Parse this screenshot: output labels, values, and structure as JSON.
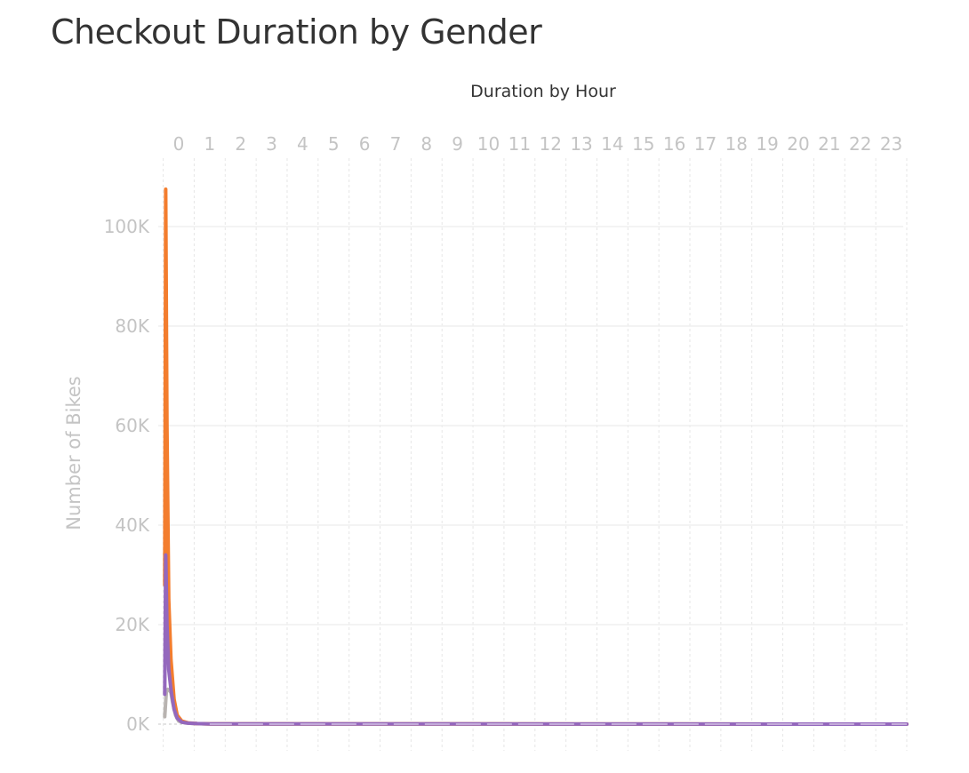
{
  "chart_data": {
    "type": "line",
    "title": "Checkout Duration by Gender",
    "xlabel": "Duration by Hour",
    "ylabel": "Number of Bikes",
    "x_ticks": [
      "0",
      "1",
      "2",
      "3",
      "4",
      "5",
      "6",
      "7",
      "8",
      "9",
      "10",
      "11",
      "12",
      "13",
      "14",
      "15",
      "16",
      "17",
      "18",
      "19",
      "20",
      "21",
      "22",
      "23"
    ],
    "y_ticks": [
      "0K",
      "20K",
      "40K",
      "60K",
      "80K",
      "100K"
    ],
    "xlim": [
      -0.5,
      23.5
    ],
    "ylim": [
      0,
      110000
    ],
    "grid": true,
    "colors": {
      "orange": "#f37d2e",
      "purple": "#9468bd",
      "gray": "#b8b3b0"
    },
    "series": [
      {
        "color": "#b8b3b0",
        "points": [
          [
            -0.45,
            1500
          ],
          [
            -0.4,
            6500
          ],
          [
            -0.35,
            7000
          ],
          [
            -0.3,
            6800
          ],
          [
            -0.25,
            6300
          ],
          [
            -0.2,
            4500
          ],
          [
            -0.1,
            1800
          ],
          [
            0,
            600
          ],
          [
            0.2,
            250
          ],
          [
            0.5,
            100
          ],
          [
            1,
            50
          ],
          [
            23.5,
            0
          ]
        ]
      },
      {
        "color": "#f37d2e",
        "points": [
          [
            -0.45,
            28000
          ],
          [
            -0.42,
            107500
          ],
          [
            -0.38,
            60000
          ],
          [
            -0.32,
            25000
          ],
          [
            -0.25,
            13000
          ],
          [
            -0.15,
            5000
          ],
          [
            -0.05,
            1800
          ],
          [
            0.1,
            600
          ],
          [
            0.3,
            250
          ],
          [
            0.6,
            100
          ],
          [
            1,
            50
          ],
          [
            23.5,
            0
          ]
        ]
      },
      {
        "color": "#9468bd",
        "points": [
          [
            -0.45,
            6000
          ],
          [
            -0.42,
            34000
          ],
          [
            -0.38,
            20000
          ],
          [
            -0.32,
            11000
          ],
          [
            -0.25,
            7000
          ],
          [
            -0.15,
            3000
          ],
          [
            -0.05,
            1200
          ],
          [
            0.1,
            400
          ],
          [
            0.3,
            200
          ],
          [
            0.6,
            100
          ],
          [
            1,
            50
          ],
          [
            23.5,
            0
          ]
        ]
      }
    ]
  }
}
